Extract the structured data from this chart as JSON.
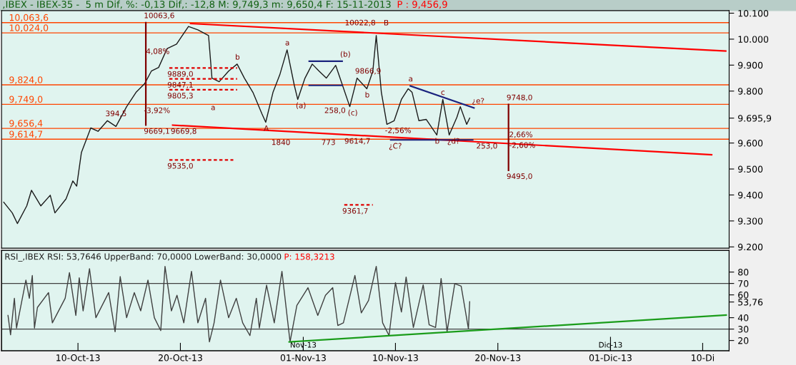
{
  "chart_data": [
    {
      "type": "line",
      "title": ",IBEX - IBEX-35 -  5 m Dif, %: -0,13 Dif,: -12,8 M: 9,749,3 m: 9,650,4 F: 15-11-2013",
      "subtitle": "P : 9,456,9",
      "xlim": [
        "2013-10-02T13:00",
        "2013-12-12T14:00"
      ],
      "ylim": [
        9195,
        10110
      ],
      "yticks": [
        {
          "value": 9200,
          "label": "9.200"
        },
        {
          "value": 9300,
          "label": "9.300"
        },
        {
          "value": 9400,
          "label": "9.400"
        },
        {
          "value": 9500,
          "label": "9.500"
        },
        {
          "value": 9600,
          "label": "9.600"
        },
        {
          "value": 9695.9,
          "label": "9.695,9"
        },
        {
          "value": 9800,
          "label": "9.800"
        },
        {
          "value": 9900,
          "label": "9.900"
        },
        {
          "value": 10000,
          "label": "10.000"
        },
        {
          "value": 10100,
          "label": "10.100"
        }
      ],
      "tick_labels": "y",
      "series": [
        {
          "color": "#1a1a1a",
          "x": [
            "2013-10-02T18:00",
            "2013-10-03T14:00",
            "2013-10-04T02:00",
            "2013-10-05T00:00",
            "2013-10-05T11:00",
            "2013-10-06T09:00",
            "2013-10-07T07:00",
            "2013-10-07T18:00",
            "2013-10-08T20:00",
            "2013-10-09T12:00",
            "2013-10-09T21:00",
            "2013-10-10T08:00",
            "2013-10-11T06:00",
            "2013-10-11T23:00",
            "2013-10-12T21:00",
            "2013-10-13T17:00",
            "2013-10-14T18:00",
            "2013-10-15T16:00",
            "2013-10-16T12:00",
            "2013-10-17T04:00",
            "2013-10-17T21:00",
            "2013-10-18T17:00",
            "2013-10-19T15:00",
            "2013-10-20T19:00",
            "2013-10-21T17:00",
            "2013-10-22T18:00",
            "2013-10-23T02:00",
            "2013-10-23T19:00",
            "2013-10-24T17:00",
            "2013-10-25T13:00",
            "2013-10-26T06:00",
            "2013-10-27T02:00",
            "2013-10-27T23:00",
            "2013-10-28T08:00",
            "2013-10-29T01:00",
            "2013-10-29T17:00",
            "2013-10-30T10:00",
            "2013-10-31T03:00",
            "2013-10-31T11:00",
            "2013-11-01T04:00",
            "2013-11-01T21:00",
            "2013-11-02T13:00",
            "2013-11-03T06:00",
            "2013-11-04T04:00",
            "2013-11-04T20:00",
            "2013-11-05T13:00",
            "2013-11-06T06:00",
            "2013-11-07T05:00",
            "2013-11-07T19:00",
            "2013-11-08T03:00",
            "2013-11-08T15:00",
            "2013-11-09T04:00",
            "2013-11-09T21:00",
            "2013-11-10T14:00",
            "2013-11-11T06:00",
            "2013-11-11T15:00",
            "2013-11-12T07:00",
            "2013-11-13T00:00",
            "2013-11-14T01:00",
            "2013-11-14T15:00",
            "2013-11-15T06:00",
            "2013-11-16T00:00",
            "2013-11-16T08:00",
            "2013-11-16T23:00",
            "2013-11-17T06:00"
          ],
          "values": [
            9372,
            9331,
            9290,
            9358,
            9418,
            9358,
            9399,
            9331,
            9385,
            9454,
            9434,
            9563,
            9658,
            9645,
            9686,
            9664,
            9740,
            9795,
            9828,
            9877,
            9891,
            9964,
            9981,
            10049,
            10036,
            10014,
            9850,
            9836,
            9877,
            9904,
            9850,
            9795,
            9713,
            9680,
            9795,
            9863,
            9959,
            9822,
            9768,
            9850,
            9904,
            9877,
            9850,
            9899,
            9822,
            9740,
            9850,
            9809,
            9877,
            10014,
            9795,
            9672,
            9686,
            9768,
            9809,
            9795,
            9686,
            9691,
            9631,
            9768,
            9631,
            9699,
            9740,
            9672,
            9696
          ]
        },
        {
          "color": "#ff0000",
          "x": [
            "2013-10-21T00:00",
            "2013-12-12T06:00"
          ],
          "values": [
            10060,
            9954
          ]
        },
        {
          "color": "#ff0000",
          "x": [
            "2013-10-19T06:00",
            "2013-12-10T21:00"
          ],
          "values": [
            9669,
            9555
          ]
        },
        {
          "color": "#1a237e",
          "x": [
            "2013-11-11T11:00",
            "2013-11-17T16:00"
          ],
          "values": [
            9820,
            9735
          ]
        },
        {
          "color": "#1a237e",
          "x": [
            "2013-11-09T13:00",
            "2013-11-17T13:00"
          ],
          "values": [
            9612,
            9612
          ]
        },
        {
          "color": "#1a237e",
          "x": [
            "2013-11-01T14:00",
            "2013-11-04T19:00"
          ],
          "values": [
            9915,
            9915
          ]
        },
        {
          "color": "#1a237e",
          "x": [
            "2013-11-01T14:00",
            "2013-11-04T19:00"
          ],
          "values": [
            9822,
            9822
          ]
        },
        {
          "color": "#e00000",
          "line_style": "dashed",
          "x": [
            "2013-10-18T22:00",
            "2013-10-25T13:00"
          ],
          "values": [
            9889,
            9889
          ]
        },
        {
          "color": "#e00000",
          "line_style": "dashed",
          "x": [
            "2013-10-18T22:00",
            "2013-10-25T13:00"
          ],
          "values": [
            9847.1,
            9847.1
          ]
        },
        {
          "color": "#e00000",
          "line_style": "dashed",
          "x": [
            "2013-10-18T22:00",
            "2013-10-25T13:00"
          ],
          "values": [
            9805.3,
            9805.3
          ]
        },
        {
          "color": "#e00000",
          "line_style": "dashed",
          "x": [
            "2013-10-18T22:00",
            "2013-10-25T04:00"
          ],
          "values": [
            9535,
            9535
          ]
        },
        {
          "color": "#e00000",
          "line_style": "dashed",
          "x": [
            "2013-11-05T00:00",
            "2013-11-07T19:00"
          ],
          "values": [
            9361.7,
            9361.7
          ]
        },
        {
          "color": "#800000",
          "x": [
            "2013-10-16T15:00",
            "2013-10-16T15:00"
          ],
          "values": [
            10063.6,
            9669.1
          ]
        },
        {
          "color": "#800000",
          "x": [
            "2013-11-21T01:00",
            "2013-11-21T01:00"
          ],
          "values": [
            9748,
            9495
          ]
        }
      ],
      "ref_lines": [
        {
          "axis": "y",
          "value": 10063.6,
          "label": "10,063,6",
          "color": "#ff4500"
        },
        {
          "axis": "y",
          "value": 10024,
          "label": "10,024,0",
          "color": "#ff4500"
        },
        {
          "axis": "y",
          "value": 9824,
          "label": "9,824,0",
          "color": "#ff4500"
        },
        {
          "axis": "y",
          "value": 9749,
          "label": "9,749,0",
          "color": "#ff4500"
        },
        {
          "axis": "y",
          "value": 9656.4,
          "label": "9,656,4",
          "color": "#ff4500"
        },
        {
          "axis": "y",
          "value": 9614.7,
          "label": "9,614,7",
          "color": "#ff4500"
        }
      ],
      "annotations": [
        {
          "text": "10063,6",
          "x": "2013-10-16T15:00",
          "y": 10063.6
        },
        {
          "text": "394,5",
          "x": "2013-10-12T21:00",
          "y": 9686
        },
        {
          "text": "4,08%",
          "x": "2013-10-16T20:00",
          "y": 9926
        },
        {
          "text": "-3,92%",
          "x": "2013-10-16T15:00",
          "y": 9749
        },
        {
          "text": "9669,1",
          "x": "2013-10-16T15:00",
          "y": 9669.1
        },
        {
          "text": "9889,0",
          "x": "2013-10-18T22:00",
          "y": 9889
        },
        {
          "text": "9847,1",
          "x": "2013-10-18T22:00",
          "y": 9847.1
        },
        {
          "text": "9805,3",
          "x": "2013-10-18T22:00",
          "y": 9805.3
        },
        {
          "text": "9669,8",
          "x": "2013-10-19T06:00",
          "y": 9669
        },
        {
          "text": "9535,0",
          "x": "2013-10-18T22:00",
          "y": 9535
        },
        {
          "text": "a",
          "x": "2013-10-23T04:00",
          "y": 9760
        },
        {
          "text": "b",
          "x": "2013-10-25T13:00",
          "y": 9904
        },
        {
          "text": "a",
          "x": "2013-10-30T10:00",
          "y": 9959
        },
        {
          "text": "(a)",
          "x": "2013-10-31T11:00",
          "y": 9768
        },
        {
          "text": "(b)",
          "x": "2013-11-04T19:00",
          "y": 9915
        },
        {
          "text": "(c)",
          "x": "2013-11-05T13:00",
          "y": 9740
        },
        {
          "text": "b",
          "x": "2013-11-07T05:00",
          "y": 9809
        },
        {
          "text": "A",
          "x": "2013-10-28T08:00",
          "y": 9680
        },
        {
          "text": "B",
          "x": "2013-11-09T01:00",
          "y": 10036
        },
        {
          "text": "¿C?",
          "x": "2013-11-09T13:00",
          "y": 9612
        },
        {
          "text": "a",
          "x": "2013-11-11T11:00",
          "y": 9820
        },
        {
          "text": "c",
          "x": "2013-11-14T15:00",
          "y": 9768
        },
        {
          "text": "¿e?",
          "x": "2013-11-17T16:00",
          "y": 9735
        },
        {
          "text": "b",
          "x": "2013-11-14T01:00",
          "y": 9631
        },
        {
          "text": "¿d?",
          "x": "2013-11-15T06:00",
          "y": 9631
        },
        {
          "text": "10022,8",
          "x": "2013-11-05T06:00",
          "y": 10036
        },
        {
          "text": "9866,9",
          "x": "2013-11-06T06:00",
          "y": 9850
        },
        {
          "text": "258,0",
          "x": "2013-11-03T06:00",
          "y": 9749
        },
        {
          "text": "-2,56%",
          "x": "2013-11-09T04:00",
          "y": 9672
        },
        {
          "text": "1840",
          "x": "2013-10-29T02:00",
          "y": 9626
        },
        {
          "text": "773",
          "x": "2013-11-02T23:00",
          "y": 9626
        },
        {
          "text": "9614,7",
          "x": "2013-11-05T05:00",
          "y": 9631
        },
        {
          "text": "253,0",
          "x": "2013-11-18T02:00",
          "y": 9612
        },
        {
          "text": "9748,0",
          "x": "2013-11-21T01:00",
          "y": 9748
        },
        {
          "text": "2,66%",
          "x": "2013-11-21T07:00",
          "y": 9656
        },
        {
          "text": "-2,60%",
          "x": "2013-11-21T07:00",
          "y": 9615
        },
        {
          "text": "9495,0",
          "x": "2013-11-21T01:00",
          "y": 9495
        },
        {
          "text": "9361,7",
          "x": "2013-11-05T00:00",
          "y": 9361.7
        }
      ]
    },
    {
      "type": "line",
      "title": "RSI_,IBEX RSI: 53,7646 UpperBand: 70,0000 LowerBand: 30,0000",
      "subtitle": "P: 158,3213",
      "xlim": [
        "2013-10-02T13:00",
        "2013-12-12T14:00"
      ],
      "xticks": [
        {
          "value": "2013-10-10",
          "label": "10-Oct-13"
        },
        {
          "value": "2013-10-20",
          "label": "20-Oct-13"
        },
        {
          "value": "2013-11-01",
          "label": "01-Nov-13"
        },
        {
          "value": "2013-11-10",
          "label": "10-Nov-13"
        },
        {
          "value": "2013-11-20",
          "label": "20-Nov-13"
        },
        {
          "value": "2013-12-01",
          "label": "01-Dic-13"
        },
        {
          "value": "2013-12-10",
          "label": "10-Di"
        }
      ],
      "x2lim": [
        "2013-10-02T13:00",
        "2013-12-12T14:00"
      ],
      "x2ticks": [
        {
          "value": "2013-11-01",
          "label": "Nov-13"
        },
        {
          "value": "2013-12-01",
          "label": "Dic-13"
        }
      ],
      "ylim": [
        11,
        99
      ],
      "yticks": [
        20,
        30,
        40,
        {
          "value": 53.76,
          "label": "53,76"
        },
        60,
        70,
        80
      ],
      "series": [
        {
          "color": "#404040",
          "x": [
            "2013-10-03T04:00",
            "2013-10-03T10:00",
            "2013-10-03T19:00",
            "2013-10-04T00:00",
            "2013-10-04T22:00",
            "2013-10-05T06:00",
            "2013-10-05T13:00",
            "2013-10-05T18:00",
            "2013-10-06T01:00",
            "2013-10-07T03:00",
            "2013-10-07T12:00",
            "2013-10-08T18:00",
            "2013-10-09T04:00",
            "2013-10-09T19:00",
            "2013-10-10T03:00",
            "2013-10-10T12:00",
            "2013-10-11T03:00",
            "2013-10-11T18:00",
            "2013-10-13T00:00",
            "2013-10-13T15:00",
            "2013-10-14T03:00",
            "2013-10-14T18:00",
            "2013-10-15T12:00",
            "2013-10-16T03:00",
            "2013-10-16T20:00",
            "2013-10-17T11:00",
            "2013-10-18T02:00",
            "2013-10-18T12:00",
            "2013-10-19T03:00",
            "2013-10-19T16:00",
            "2013-10-20T08:00",
            "2013-10-21T02:00",
            "2013-10-21T17:00",
            "2013-10-22T11:00",
            "2013-10-22T20:00",
            "2013-10-23T07:00",
            "2013-10-23T22:00",
            "2013-10-24T17:00",
            "2013-10-25T11:00",
            "2013-10-26T02:00",
            "2013-10-26T19:00",
            "2013-10-27T10:00",
            "2013-10-27T17:00",
            "2013-10-28T10:00",
            "2013-10-29T04:00",
            "2013-10-29T22:00",
            "2013-10-30T17:00",
            "2013-10-31T09:00",
            "2013-11-01T11:00",
            "2013-11-02T10:00",
            "2013-11-03T04:00",
            "2013-11-03T21:00",
            "2013-11-04T09:00",
            "2013-11-04T22:00",
            "2013-11-06T01:00",
            "2013-11-06T16:00",
            "2013-11-07T09:00",
            "2013-11-08T03:00",
            "2013-11-08T18:00",
            "2013-11-09T09:00",
            "2013-11-10T00:00",
            "2013-11-10T14:00",
            "2013-11-11T01:00",
            "2013-11-11T18:00",
            "2013-11-12T17:00",
            "2013-11-13T07:00",
            "2013-11-13T22:00",
            "2013-11-14T11:00",
            "2013-11-15T01:00",
            "2013-11-15T19:00",
            "2013-11-16T10:00",
            "2013-11-17T03:00",
            "2013-11-17T06:00"
          ],
          "values": [
            42,
            25,
            57,
            31,
            73,
            57,
            77,
            31,
            49,
            62,
            35.5,
            57,
            79.5,
            42,
            75,
            46,
            83,
            40,
            62,
            27.7,
            76,
            40,
            62,
            46,
            73,
            40,
            28.7,
            85,
            46,
            59.6,
            35.5,
            80.6,
            35.5,
            57,
            18.8,
            35.5,
            73,
            40,
            57,
            35.5,
            24.3,
            57,
            31,
            68.5,
            35.5,
            80.6,
            18.8,
            50.8,
            66.3,
            42,
            59.6,
            66.3,
            33.2,
            35.5,
            77,
            44.2,
            55.2,
            85,
            35.5,
            24.3,
            70.7,
            45,
            75.6,
            31.4,
            68.8,
            33.7,
            31.4,
            74.4,
            28,
            69.9,
            67.7,
            30.3,
            54
          ]
        },
        {
          "color": "#1a9c1a",
          "x": [
            "2013-10-30T15:00",
            "2013-12-12T07:00"
          ],
          "values": [
            18.8,
            42.3
          ]
        }
      ],
      "ref_lines": [
        {
          "axis": "y",
          "value": 70,
          "color": "#404040"
        },
        {
          "axis": "y",
          "value": 30,
          "color": "#404040"
        }
      ]
    }
  ]
}
